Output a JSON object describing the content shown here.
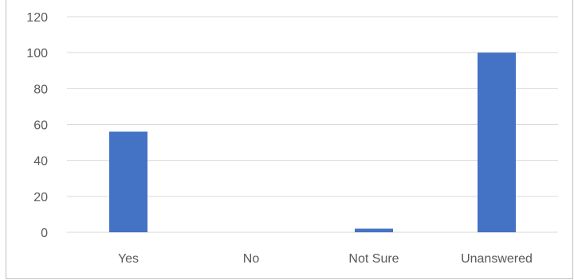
{
  "chart_data": {
    "type": "bar",
    "categories": [
      "Yes",
      "No",
      "Not Sure",
      "Unanswered"
    ],
    "values": [
      56,
      0,
      2,
      100
    ],
    "ylim": [
      0,
      120
    ],
    "yticks": [
      0,
      20,
      40,
      60,
      80,
      100,
      120
    ],
    "grid": true,
    "legend": "none",
    "colors": {
      "bar": "#4472c4",
      "grid": "#d9d9d9",
      "text": "#595959"
    }
  }
}
